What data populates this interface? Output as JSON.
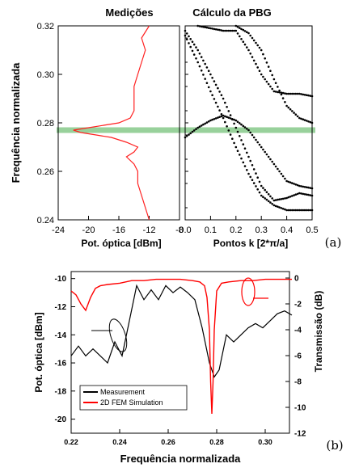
{
  "chart_data": [
    {
      "type": "line",
      "panel_label": "(a)",
      "left_title": "Medições",
      "right_title": "Cálculo da PBG",
      "ylabel": "Frequência normalizada",
      "left_xlabel": "Pot. óptica  [dBm]",
      "right_xlabel": "Pontos k  [2*π/a]",
      "ylim": [
        0.24,
        0.32
      ],
      "left_xlim": [
        -24,
        -8
      ],
      "right_xlim": [
        0.0,
        0.5
      ],
      "yticks": [
        "0.32",
        "0.30",
        "0.28",
        "0.26",
        "0.24"
      ],
      "yticks_values": [
        0.32,
        0.3,
        0.28,
        0.26,
        0.24
      ],
      "left_xticks": [
        "-24",
        "-20",
        "-16",
        "-12",
        "-8"
      ],
      "left_xticks_values": [
        -24,
        -20,
        -16,
        -12,
        -8
      ],
      "right_xticks": [
        "0.0",
        "0.1",
        "0.2",
        "0.3",
        "0.4",
        "0.5"
      ],
      "right_xticks_values": [
        0.0,
        0.1,
        0.2,
        0.3,
        0.4,
        0.5
      ],
      "band_frequency": 0.277,
      "band_color": "#86c98a",
      "measurement_color": "#ff2020",
      "measurement": {
        "freq": [
          0.24,
          0.245,
          0.25,
          0.255,
          0.26,
          0.263,
          0.266,
          0.268,
          0.27,
          0.272,
          0.274,
          0.275,
          0.276,
          0.277,
          0.278,
          0.279,
          0.28,
          0.282,
          0.285,
          0.29,
          0.295,
          0.3,
          0.305,
          0.31,
          0.315,
          0.32
        ],
        "power": [
          -12,
          -12.5,
          -13,
          -13.5,
          -13.5,
          -14,
          -15,
          -14,
          -13.5,
          -15,
          -17,
          -19,
          -21,
          -22,
          -20,
          -18,
          -16,
          -14.5,
          -14,
          -14,
          -14,
          -13.5,
          -13,
          -12.5,
          -13,
          -12
        ]
      },
      "bands": [
        {
          "k": [
            0.0,
            0.05,
            0.1,
            0.15,
            0.2,
            0.25,
            0.3,
            0.35,
            0.4,
            0.45,
            0.5
          ],
          "f": [
            0.274,
            0.278,
            0.281,
            0.283,
            0.281,
            0.277,
            0.27,
            0.263,
            0.256,
            0.254,
            0.253
          ]
        },
        {
          "k": [
            0.0,
            0.05,
            0.1,
            0.15,
            0.2,
            0.25,
            0.3,
            0.35,
            0.4,
            0.45,
            0.5
          ],
          "f": [
            0.318,
            0.31,
            0.3,
            0.29,
            0.278,
            0.266,
            0.254,
            0.248,
            0.249,
            0.251,
            0.25
          ]
        },
        {
          "k": [
            0.0,
            0.05,
            0.1,
            0.15,
            0.2,
            0.25,
            0.3,
            0.35,
            0.4,
            0.45,
            0.5
          ],
          "f": [
            0.316,
            0.305,
            0.293,
            0.282,
            0.27,
            0.259,
            0.25,
            0.246,
            0.244,
            0.244,
            0.244
          ]
        },
        {
          "k": [
            0.05,
            0.1,
            0.15,
            0.2,
            0.25,
            0.3,
            0.35,
            0.4,
            0.45,
            0.5
          ],
          "f": [
            0.32,
            0.319,
            0.318,
            0.318,
            0.31,
            0.3,
            0.293,
            0.292,
            0.292,
            0.291
          ]
        },
        {
          "k": [
            0.2,
            0.25,
            0.3,
            0.35,
            0.4,
            0.45,
            0.5
          ],
          "f": [
            0.32,
            0.317,
            0.31,
            0.298,
            0.287,
            0.282,
            0.28
          ]
        }
      ]
    },
    {
      "type": "line",
      "panel_label": "(b)",
      "xlabel": "Frequência normalizada",
      "ylabel": "Pot. óptica  [dBm]",
      "y2label": "Transmissão (dB)",
      "xlim": [
        0.22,
        0.31
      ],
      "ylim": [
        -21,
        -9.5
      ],
      "y2lim": [
        -12,
        0.5
      ],
      "xticks": [
        "0.22",
        "0.24",
        "0.26",
        "0.28",
        "0.30"
      ],
      "xticks_values": [
        0.22,
        0.24,
        0.26,
        0.28,
        0.3
      ],
      "yticks": [
        "-10",
        "-12",
        "-14",
        "-16",
        "-18",
        "-20"
      ],
      "yticks_values": [
        -10,
        -12,
        -14,
        -16,
        -18,
        -20
      ],
      "y2ticks": [
        "0",
        "-2",
        "-4",
        "-6",
        "-8",
        "-10",
        "-12"
      ],
      "y2ticks_values": [
        0,
        -2,
        -4,
        -6,
        -8,
        -10,
        -12
      ],
      "series": [
        {
          "name": "Measurement",
          "color": "#000000",
          "axis": "left",
          "x": [
            0.22,
            0.223,
            0.226,
            0.229,
            0.232,
            0.235,
            0.238,
            0.241,
            0.244,
            0.247,
            0.25,
            0.253,
            0.256,
            0.259,
            0.262,
            0.265,
            0.268,
            0.271,
            0.274,
            0.277,
            0.279,
            0.281,
            0.284,
            0.287,
            0.29,
            0.293,
            0.296,
            0.299,
            0.302,
            0.305,
            0.308,
            0.311
          ],
          "y": [
            -15.5,
            -14.8,
            -15.5,
            -15.0,
            -15.5,
            -16.0,
            -14.5,
            -15.5,
            -13.0,
            -10.5,
            -11.5,
            -10.8,
            -11.5,
            -10.5,
            -11.0,
            -10.6,
            -11.0,
            -11.5,
            -13.5,
            -16.0,
            -17.0,
            -16.5,
            -14.0,
            -14.5,
            -14.0,
            -13.5,
            -13.2,
            -13.5,
            -13.0,
            -12.5,
            -12.3,
            -12.6
          ]
        },
        {
          "name": "2D FEM Simulation",
          "color": "#ff0000",
          "axis": "right",
          "x": [
            0.22,
            0.222,
            0.224,
            0.226,
            0.228,
            0.23,
            0.232,
            0.235,
            0.24,
            0.245,
            0.25,
            0.255,
            0.26,
            0.265,
            0.27,
            0.273,
            0.275,
            0.276,
            0.277,
            0.2775,
            0.278,
            0.2785,
            0.279,
            0.28,
            0.282,
            0.285,
            0.29,
            0.295,
            0.3,
            0.305,
            0.311
          ],
          "y": [
            -1.0,
            -1.3,
            -2.0,
            -2.5,
            -1.5,
            -0.8,
            -0.6,
            -0.5,
            -0.4,
            -0.2,
            -0.2,
            -0.1,
            -0.1,
            -0.1,
            -0.2,
            -0.3,
            -0.6,
            -1.5,
            -4.0,
            -8.0,
            -10.5,
            -8.0,
            -4.0,
            -1.0,
            -0.4,
            -0.3,
            -0.2,
            -0.2,
            -0.1,
            -0.1,
            -0.1
          ]
        }
      ]
    }
  ]
}
